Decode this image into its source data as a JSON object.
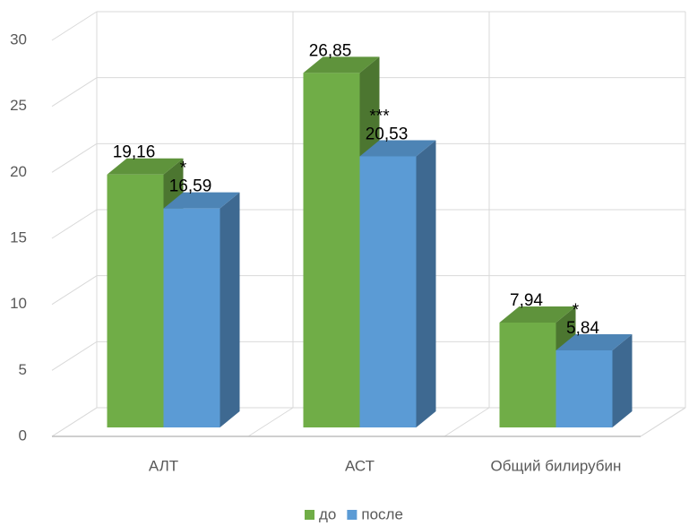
{
  "chart_data": {
    "type": "bar3d",
    "categories": [
      "АЛТ",
      "АСТ",
      "Общий билирубин"
    ],
    "series": [
      {
        "name": "до",
        "color": "#70ad47",
        "values": [
          19.16,
          26.85,
          7.94
        ],
        "value_labels": [
          "19,16",
          "26,85",
          "7,94"
        ]
      },
      {
        "name": "после",
        "color": "#5b9bd5",
        "values": [
          16.59,
          20.53,
          5.84
        ],
        "value_labels": [
          "16,59",
          "20,53",
          "5,84"
        ],
        "annotations": [
          "*",
          "***",
          "*"
        ]
      }
    ],
    "ylim": [
      0,
      30
    ],
    "yticks": [
      0,
      5,
      10,
      15,
      20,
      25,
      30
    ],
    "grid": true,
    "legend": "bottom"
  }
}
